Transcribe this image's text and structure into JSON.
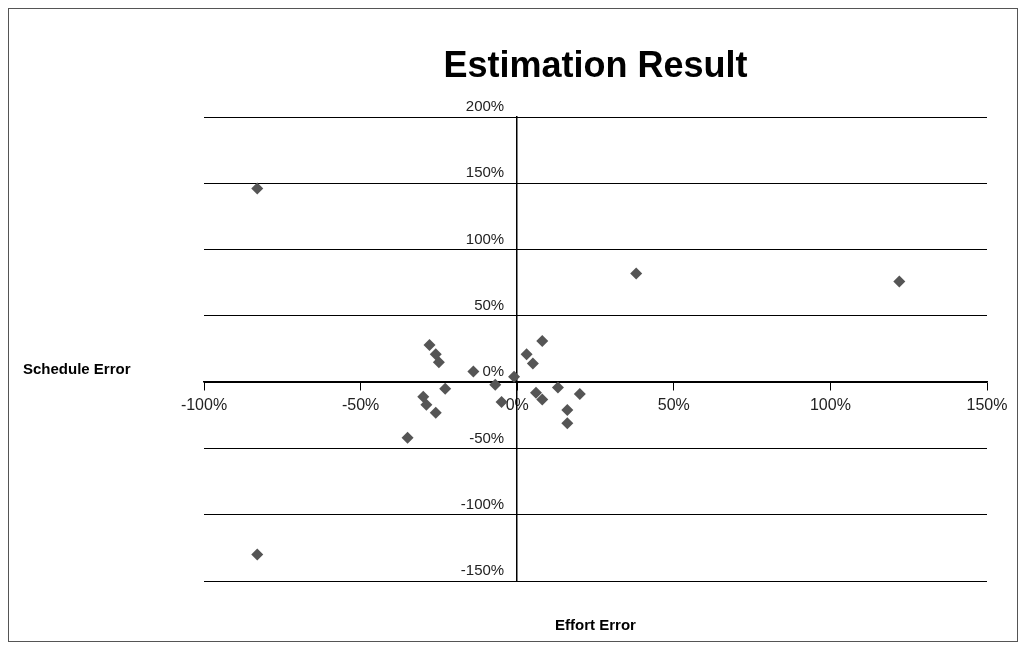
{
  "chart_data": {
    "type": "scatter",
    "title": "Estimation Result",
    "xlabel": "Effort Error",
    "ylabel": "Schedule Error",
    "series": [
      {
        "color": "#555555",
        "x": [
          -83,
          -83,
          38,
          122,
          -28,
          -26,
          -25,
          -14,
          -23,
          -30,
          -29,
          -26,
          -35,
          -7,
          -5,
          -1,
          8,
          3,
          5,
          6,
          8,
          13,
          20,
          16,
          16
        ],
        "values": [
          146,
          -130,
          82,
          76,
          28,
          21,
          15,
          8,
          -5,
          -11,
          -17,
          -23,
          -42,
          -2,
          -15,
          4,
          31,
          21,
          14,
          -8,
          -13,
          -4,
          -9,
          -21,
          -31
        ]
      }
    ],
    "xlim": [
      -100,
      150
    ],
    "xticks": [
      {
        "value": -100,
        "label": "-100%"
      },
      {
        "value": -50,
        "label": "-50%"
      },
      {
        "value": 0,
        "label": "0%"
      },
      {
        "value": 50,
        "label": "50%"
      },
      {
        "value": 100,
        "label": "100%"
      },
      {
        "value": 150,
        "label": "150%"
      }
    ],
    "ylim": [
      -150,
      200
    ],
    "yticks": [
      {
        "value": -150,
        "label": "-150%"
      },
      {
        "value": -100,
        "label": "-100%"
      },
      {
        "value": -50,
        "label": "-50%"
      },
      {
        "value": 0,
        "label": "0%"
      },
      {
        "value": 50,
        "label": "50%"
      },
      {
        "value": 100,
        "label": "100%"
      },
      {
        "value": 150,
        "label": "150%"
      },
      {
        "value": 200,
        "label": "200%"
      }
    ],
    "grid": "y",
    "marker": "diamond",
    "legend": false
  }
}
